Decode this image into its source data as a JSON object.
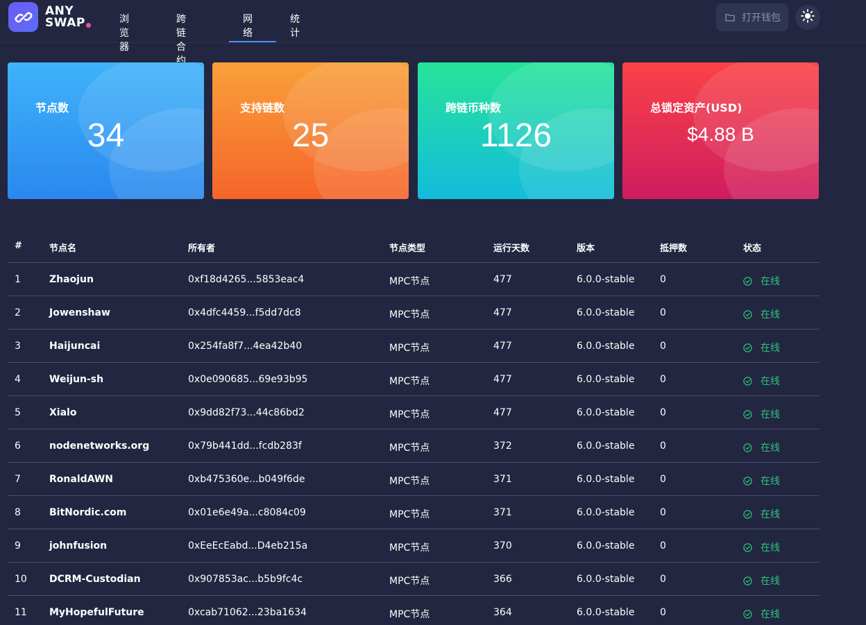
{
  "brand": {
    "line1": "ANY",
    "line2": "SWAP",
    "dot_color": "#ef4fa5",
    "icon": "anyswap-link-icon"
  },
  "nav": {
    "items": [
      {
        "label": "浏览器"
      },
      {
        "label": "跨链合约"
      },
      {
        "label": "网络",
        "active": true
      },
      {
        "label": "统计"
      }
    ]
  },
  "header": {
    "wallet_button": {
      "label": "打开钱包",
      "icon": "folder-icon"
    },
    "theme_toggle": {
      "icon": "sun-icon"
    }
  },
  "stats": [
    {
      "label": "节点数",
      "value": "34"
    },
    {
      "label": "支持链数",
      "value": "25"
    },
    {
      "label": "跨链币种数",
      "value": "1126"
    },
    {
      "label": "总锁定资产(USD)",
      "value": "$4.88 B"
    }
  ],
  "table": {
    "headers": [
      "#",
      "节点名",
      "所有者",
      "节点类型",
      "运行天数",
      "版本",
      "抵押数",
      "状态"
    ],
    "rows": [
      {
        "idx": "1",
        "name": "Zhaojun",
        "owner": "0xf18d4265...5853eac4",
        "type": "MPC节点",
        "days": "477",
        "version": "6.0.0-stable",
        "stake": "0",
        "status": "在线"
      },
      {
        "idx": "2",
        "name": "Jowenshaw",
        "owner": "0x4dfc4459...f5dd7dc8",
        "type": "MPC节点",
        "days": "477",
        "version": "6.0.0-stable",
        "stake": "0",
        "status": "在线"
      },
      {
        "idx": "3",
        "name": "Haijuncai",
        "owner": "0x254fa8f7...4ea42b40",
        "type": "MPC节点",
        "days": "477",
        "version": "6.0.0-stable",
        "stake": "0",
        "status": "在线"
      },
      {
        "idx": "4",
        "name": "Weijun-sh",
        "owner": "0x0e090685...69e93b95",
        "type": "MPC节点",
        "days": "477",
        "version": "6.0.0-stable",
        "stake": "0",
        "status": "在线"
      },
      {
        "idx": "5",
        "name": "Xialo",
        "owner": "0x9dd82f73...44c86bd2",
        "type": "MPC节点",
        "days": "477",
        "version": "6.0.0-stable",
        "stake": "0",
        "status": "在线"
      },
      {
        "idx": "6",
        "name": "nodenetworks.org",
        "owner": "0x79b441dd...fcdb283f",
        "type": "MPC节点",
        "days": "372",
        "version": "6.0.0-stable",
        "stake": "0",
        "status": "在线"
      },
      {
        "idx": "7",
        "name": "RonaldAWN",
        "owner": "0xb475360e...b049f6de",
        "type": "MPC节点",
        "days": "371",
        "version": "6.0.0-stable",
        "stake": "0",
        "status": "在线"
      },
      {
        "idx": "8",
        "name": "BitNordic.com",
        "owner": "0x01e6e49a...c8084c09",
        "type": "MPC节点",
        "days": "371",
        "version": "6.0.0-stable",
        "stake": "0",
        "status": "在线"
      },
      {
        "idx": "9",
        "name": "johnfusion",
        "owner": "0xEeEcEabd...D4eb215a",
        "type": "MPC节点",
        "days": "370",
        "version": "6.0.0-stable",
        "stake": "0",
        "status": "在线"
      },
      {
        "idx": "10",
        "name": "DCRM-Custodian",
        "owner": "0x907853ac...b5b9fc4c",
        "type": "MPC节点",
        "days": "366",
        "version": "6.0.0-stable",
        "stake": "0",
        "status": "在线"
      },
      {
        "idx": "11",
        "name": "MyHopefulFuture",
        "owner": "0xcab71062...23ba1634",
        "type": "MPC节点",
        "days": "364",
        "version": "6.0.0-stable",
        "stake": "0",
        "status": "在线"
      }
    ]
  },
  "colors": {
    "background": "#222640",
    "online": "#2dc57e",
    "nav_active_underline": "#4b8ef8"
  }
}
